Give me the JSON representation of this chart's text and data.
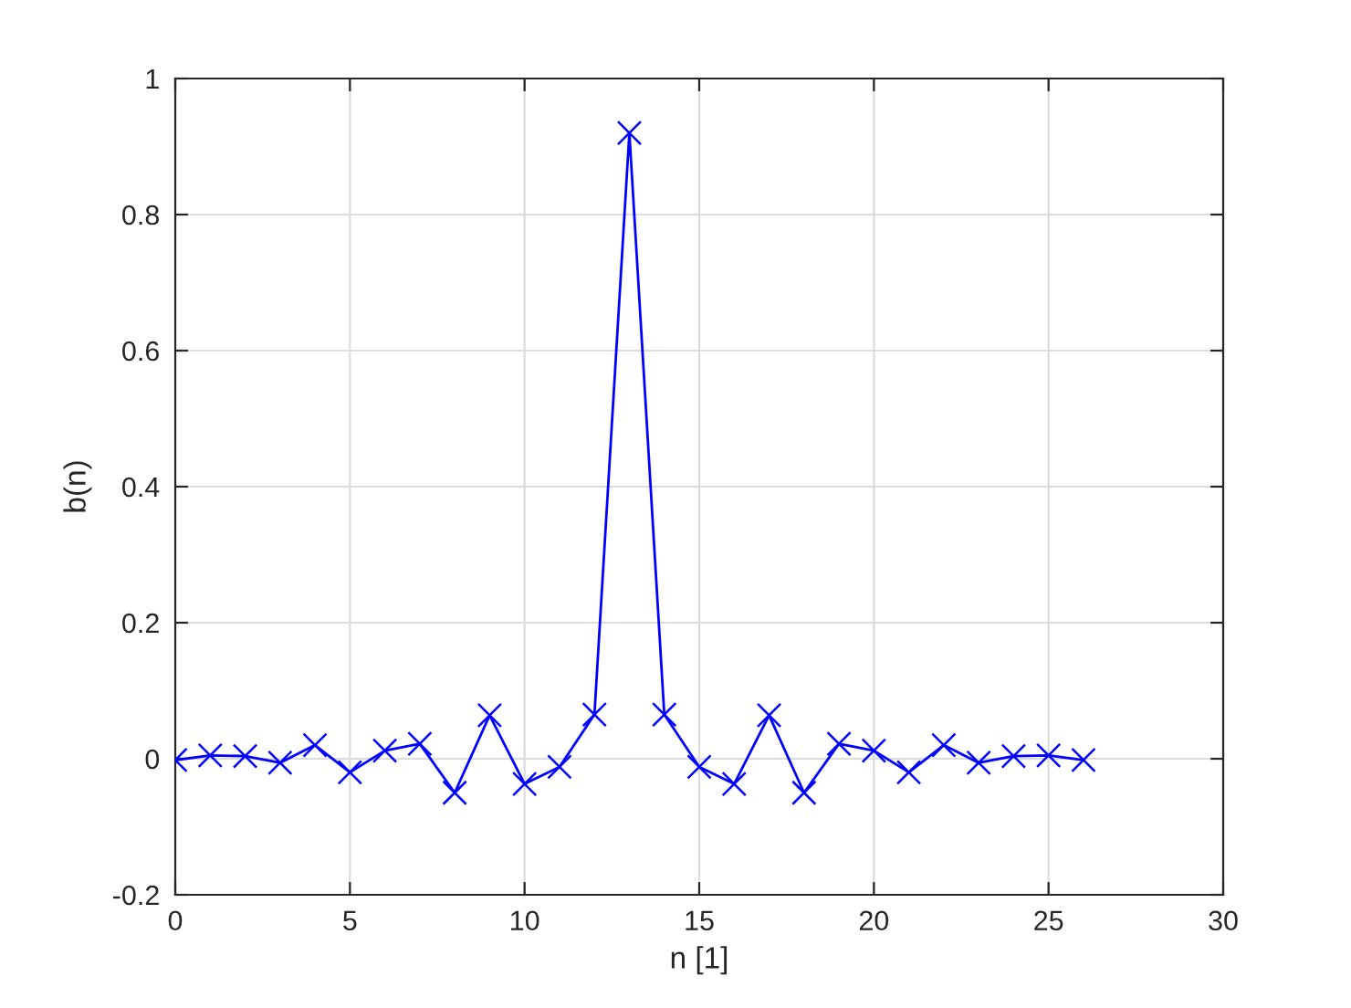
{
  "chart_data": {
    "type": "line",
    "xlabel": "n [1]",
    "ylabel": "b(n)",
    "x": [
      0,
      1,
      2,
      3,
      4,
      5,
      6,
      7,
      8,
      9,
      10,
      11,
      12,
      13,
      14,
      15,
      16,
      17,
      18,
      19,
      20,
      21,
      22,
      23,
      24,
      25,
      26
    ],
    "series": [
      {
        "color": "#0000ff",
        "values": [
          -0.002,
          0.005,
          0.004,
          -0.006,
          0.02,
          -0.02,
          0.012,
          0.022,
          -0.05,
          0.064,
          -0.037,
          -0.012,
          0.065,
          0.92,
          0.065,
          -0.012,
          -0.037,
          0.064,
          -0.05,
          0.022,
          0.012,
          -0.02,
          0.02,
          -0.006,
          0.004,
          0.005,
          -0.002
        ]
      }
    ],
    "xlim": [
      0,
      30
    ],
    "ylim": [
      -0.2,
      1
    ],
    "xticks": [
      0,
      5,
      10,
      15,
      20,
      25,
      30
    ],
    "yticks": [
      -0.2,
      0,
      0.2,
      0.4,
      0.6,
      0.8,
      1
    ],
    "grid": true,
    "marker": "cross",
    "line_style": "solid"
  }
}
